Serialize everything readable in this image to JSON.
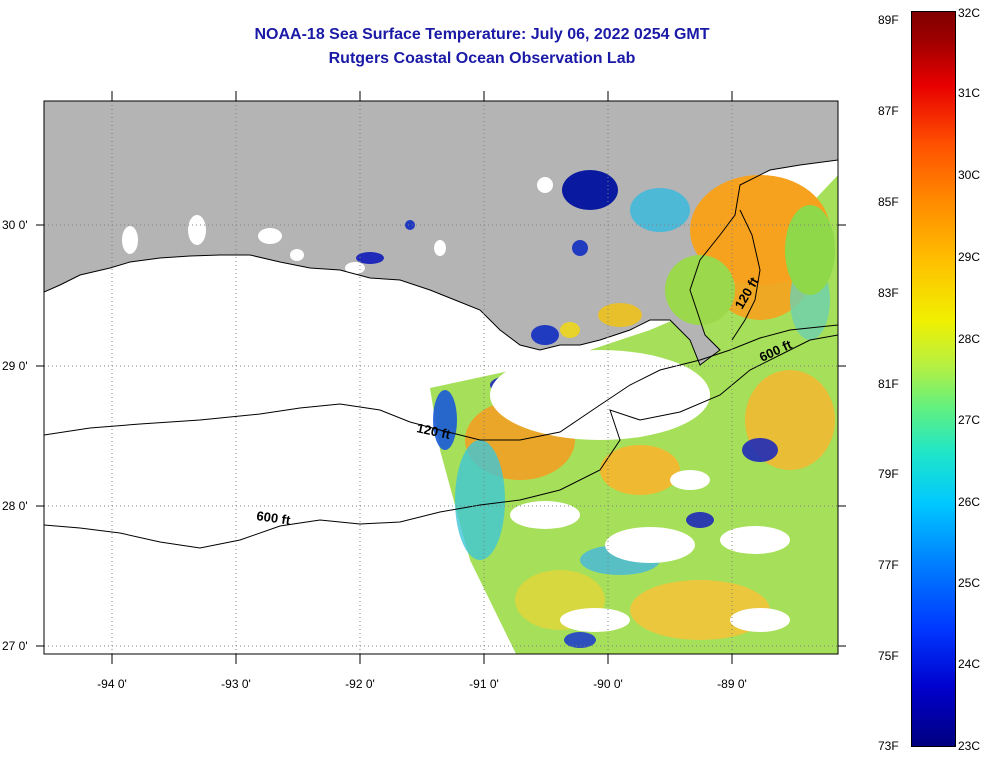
{
  "title": {
    "line1": "NOAA-18 Sea Surface Temperature:  July 06, 2022 0254 GMT",
    "line2": "Rutgers Coastal Ocean Observation Lab"
  },
  "map": {
    "lat_labels": [
      "30 0'",
      "29 0'",
      "28 0'",
      "27 0'"
    ],
    "lon_labels": [
      "-94 0'",
      "-93 0'",
      "-92 0'",
      "-91 0'",
      "-90 0'",
      "-89 0'"
    ],
    "contour_labels": [
      "120 ft",
      "600 ft",
      "120 ft",
      "600 ft"
    ],
    "colors": {
      "land": "#b4b4b4",
      "ocean_nodata": "#ffffff",
      "title": "#1a1aa6"
    }
  },
  "colorbar": {
    "fahrenheit": [
      "89F",
      "87F",
      "85F",
      "83F",
      "81F",
      "79F",
      "77F",
      "75F",
      "73F"
    ],
    "celsius": [
      "32C",
      "31C",
      "30C",
      "29C",
      "28C",
      "27C",
      "26C",
      "25C",
      "24C",
      "23C"
    ]
  }
}
